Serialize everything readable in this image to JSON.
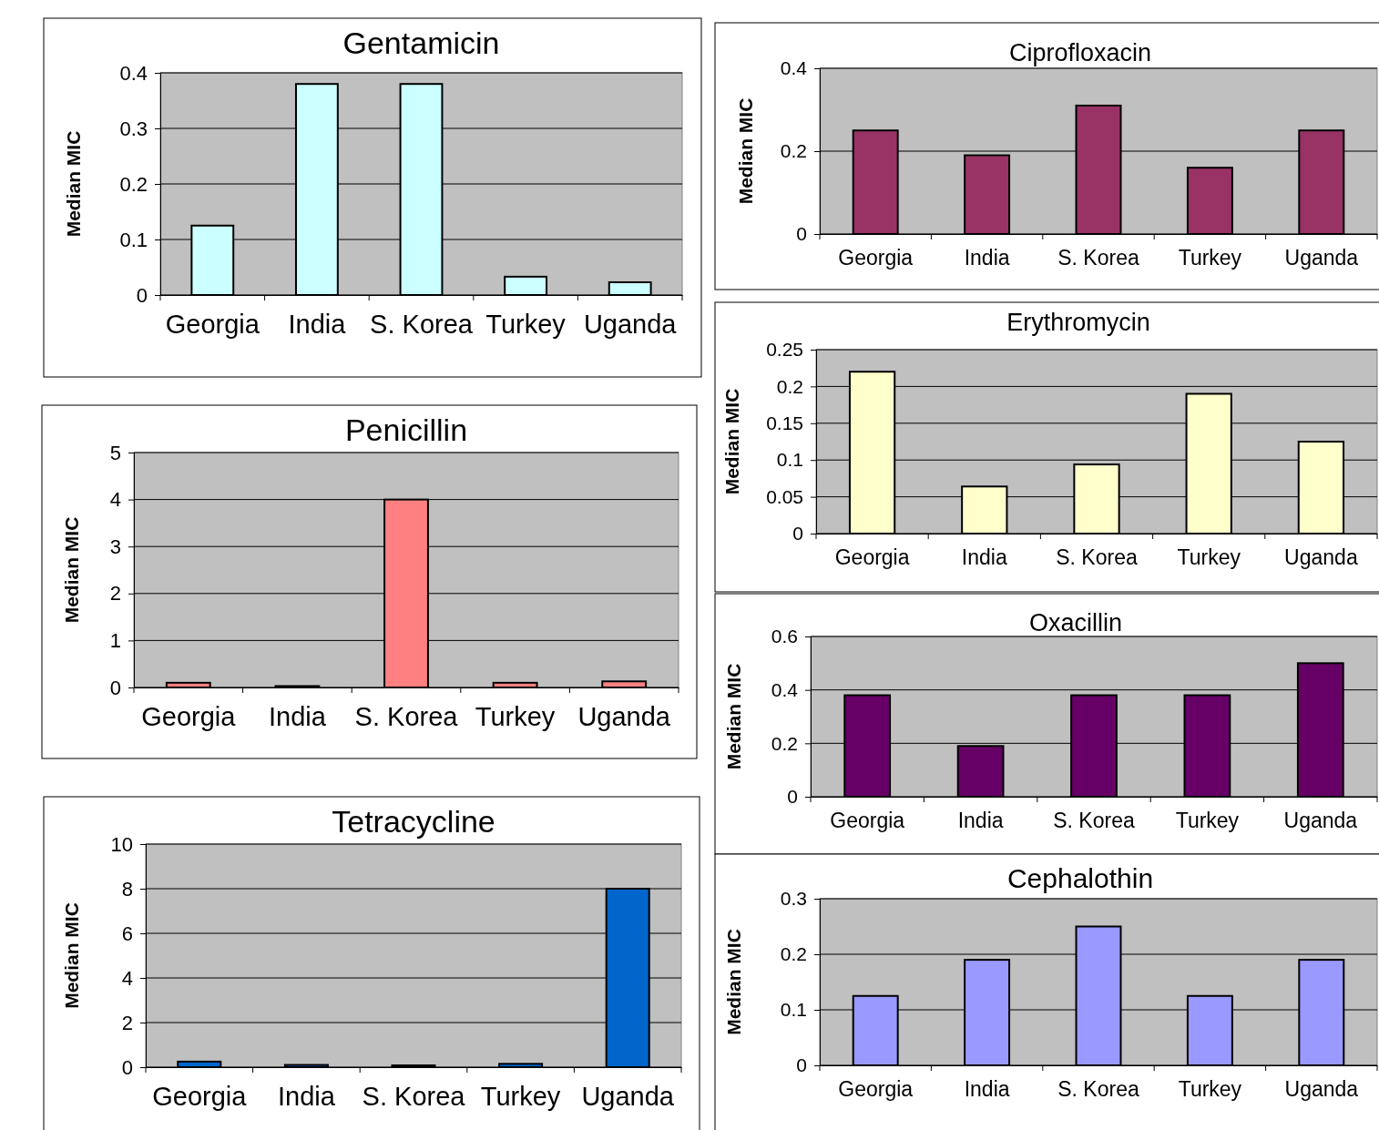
{
  "chart_data": [
    {
      "type": "bar",
      "title": "Gentamicin",
      "ylabel": "Median MIC",
      "categories": [
        "Georgia",
        "India",
        "S. Korea",
        "Turkey",
        "Uganda"
      ],
      "values": [
        0.125,
        0.38,
        0.38,
        0.033,
        0.023
      ],
      "color": "#ccffff",
      "ylim": [
        0,
        0.4
      ],
      "yticks": [
        0,
        0.1,
        0.2,
        0.3,
        0.4
      ],
      "grid": "y"
    },
    {
      "type": "bar",
      "title": "Penicillin",
      "ylabel": "Median MIC",
      "categories": [
        "Georgia",
        "India",
        "S. Korea",
        "Turkey",
        "Uganda"
      ],
      "values": [
        0.1,
        0.03,
        4,
        0.1,
        0.13
      ],
      "color": "#ff8080",
      "ylim": [
        0,
        5
      ],
      "yticks": [
        0,
        1,
        2,
        3,
        4,
        5
      ],
      "grid": "y"
    },
    {
      "type": "bar",
      "title": "Tetracycline",
      "ylabel": "Median MIC",
      "categories": [
        "Georgia",
        "India",
        "S. Korea",
        "Turkey",
        "Uganda"
      ],
      "values": [
        0.25,
        0.1,
        0.08,
        0.15,
        8
      ],
      "color": "#0066cc",
      "ylim": [
        0,
        10
      ],
      "yticks": [
        0,
        2,
        4,
        6,
        8,
        10
      ],
      "grid": "y"
    },
    {
      "type": "bar",
      "title": "Ciprofloxacin",
      "ylabel": "Median MIC",
      "categories": [
        "Georgia",
        "India",
        "S. Korea",
        "Turkey",
        "Uganda"
      ],
      "values": [
        0.25,
        0.19,
        0.31,
        0.16,
        0.25
      ],
      "color": "#993366",
      "ylim": [
        0,
        0.4
      ],
      "yticks": [
        0,
        0.2,
        0.4
      ],
      "grid": "y"
    },
    {
      "type": "bar",
      "title": "Erythromycin",
      "ylabel": "Median MIC",
      "categories": [
        "Georgia",
        "India",
        "S. Korea",
        "Turkey",
        "Uganda"
      ],
      "values": [
        0.22,
        0.064,
        0.094,
        0.19,
        0.125
      ],
      "color": "#ffffcc",
      "ylim": [
        0,
        0.25
      ],
      "yticks": [
        0,
        0.05,
        0.1,
        0.15,
        0.2,
        0.25
      ],
      "grid": "y"
    },
    {
      "type": "bar",
      "title": "Oxacillin",
      "ylabel": "Median MIC",
      "categories": [
        "Georgia",
        "India",
        "S. Korea",
        "Turkey",
        "Uganda"
      ],
      "values": [
        0.38,
        0.19,
        0.38,
        0.38,
        0.5
      ],
      "color": "#660066",
      "ylim": [
        0,
        0.6
      ],
      "yticks": [
        0,
        0.2,
        0.4,
        0.6
      ],
      "grid": "y"
    },
    {
      "type": "bar",
      "title": "Cephalothin",
      "ylabel": "Median MIC",
      "categories": [
        "Georgia",
        "India",
        "S. Korea",
        "Turkey",
        "Uganda"
      ],
      "values": [
        0.125,
        0.19,
        0.25,
        0.125,
        0.19
      ],
      "color": "#9999ff",
      "ylim": [
        0,
        0.3
      ],
      "yticks": [
        0,
        0.1,
        0.2,
        0.3
      ],
      "grid": "y"
    }
  ]
}
